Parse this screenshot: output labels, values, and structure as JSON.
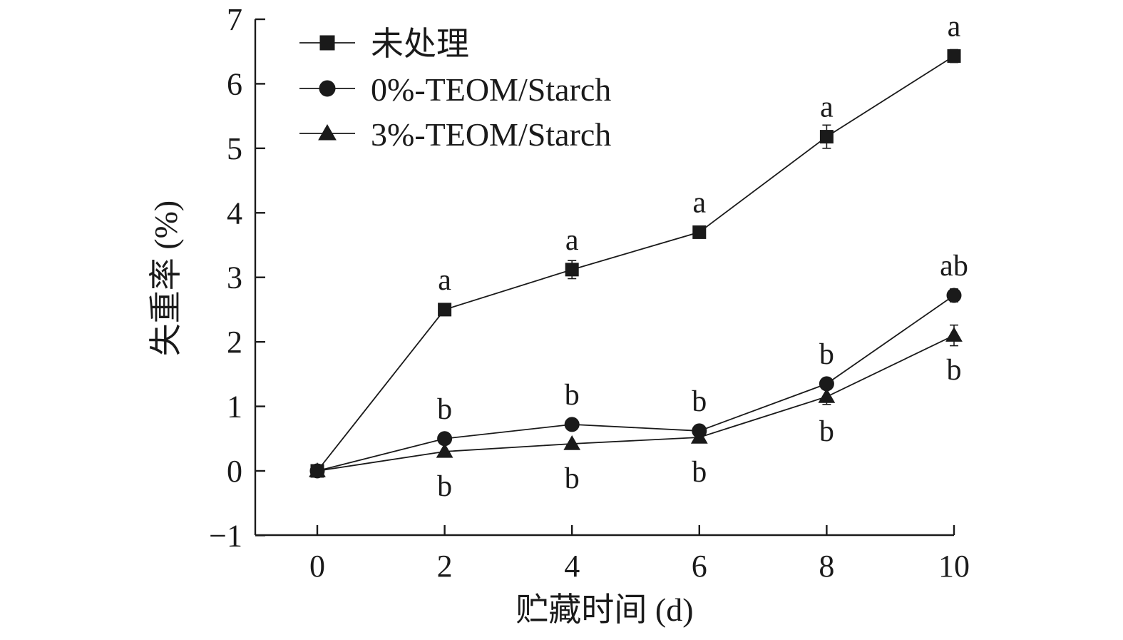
{
  "chart_data": {
    "type": "line",
    "xlabel": "贮藏时间 (d)",
    "ylabel": "失重率 (%)",
    "xlim": [
      -0.5,
      10
    ],
    "ylim": [
      -1,
      7
    ],
    "xticks": [
      0,
      2,
      4,
      6,
      8,
      10
    ],
    "yticks": [
      -1,
      0,
      1,
      2,
      3,
      4,
      5,
      6,
      7
    ],
    "xtick_labels": [
      "0",
      "2",
      "4",
      "6",
      "8",
      "10"
    ],
    "ytick_labels": [
      "−1",
      "0",
      "1",
      "2",
      "3",
      "4",
      "5",
      "6",
      "7"
    ],
    "x": [
      0,
      2,
      4,
      6,
      8,
      10
    ],
    "legend_position": "top-left",
    "grid": false,
    "series": [
      {
        "name": "未处理",
        "marker": "square",
        "values": [
          0,
          2.5,
          3.12,
          3.7,
          5.18,
          6.43
        ],
        "errors": [
          0.03,
          0.05,
          0.14,
          0.07,
          0.18,
          0.1
        ],
        "labels": [
          "",
          "a",
          "a",
          "a",
          "a",
          "a"
        ],
        "label_side": "above"
      },
      {
        "name": "0%-TEOM/Starch",
        "marker": "circle",
        "values": [
          0,
          0.5,
          0.72,
          0.62,
          1.35,
          2.72
        ],
        "errors": [
          0.03,
          0.04,
          0.05,
          0.05,
          0.08,
          0.1
        ],
        "labels": [
          "",
          "b",
          "b",
          "b",
          "b",
          "ab"
        ],
        "label_side": "above"
      },
      {
        "name": "3%-TEOM/Starch",
        "marker": "triangle",
        "values": [
          0,
          0.3,
          0.42,
          0.52,
          1.15,
          2.1
        ],
        "errors": [
          0.03,
          0.04,
          0.04,
          0.05,
          0.12,
          0.16
        ],
        "labels": [
          "",
          "b",
          "b",
          "b",
          "b",
          "b"
        ],
        "label_side": "below"
      }
    ]
  }
}
